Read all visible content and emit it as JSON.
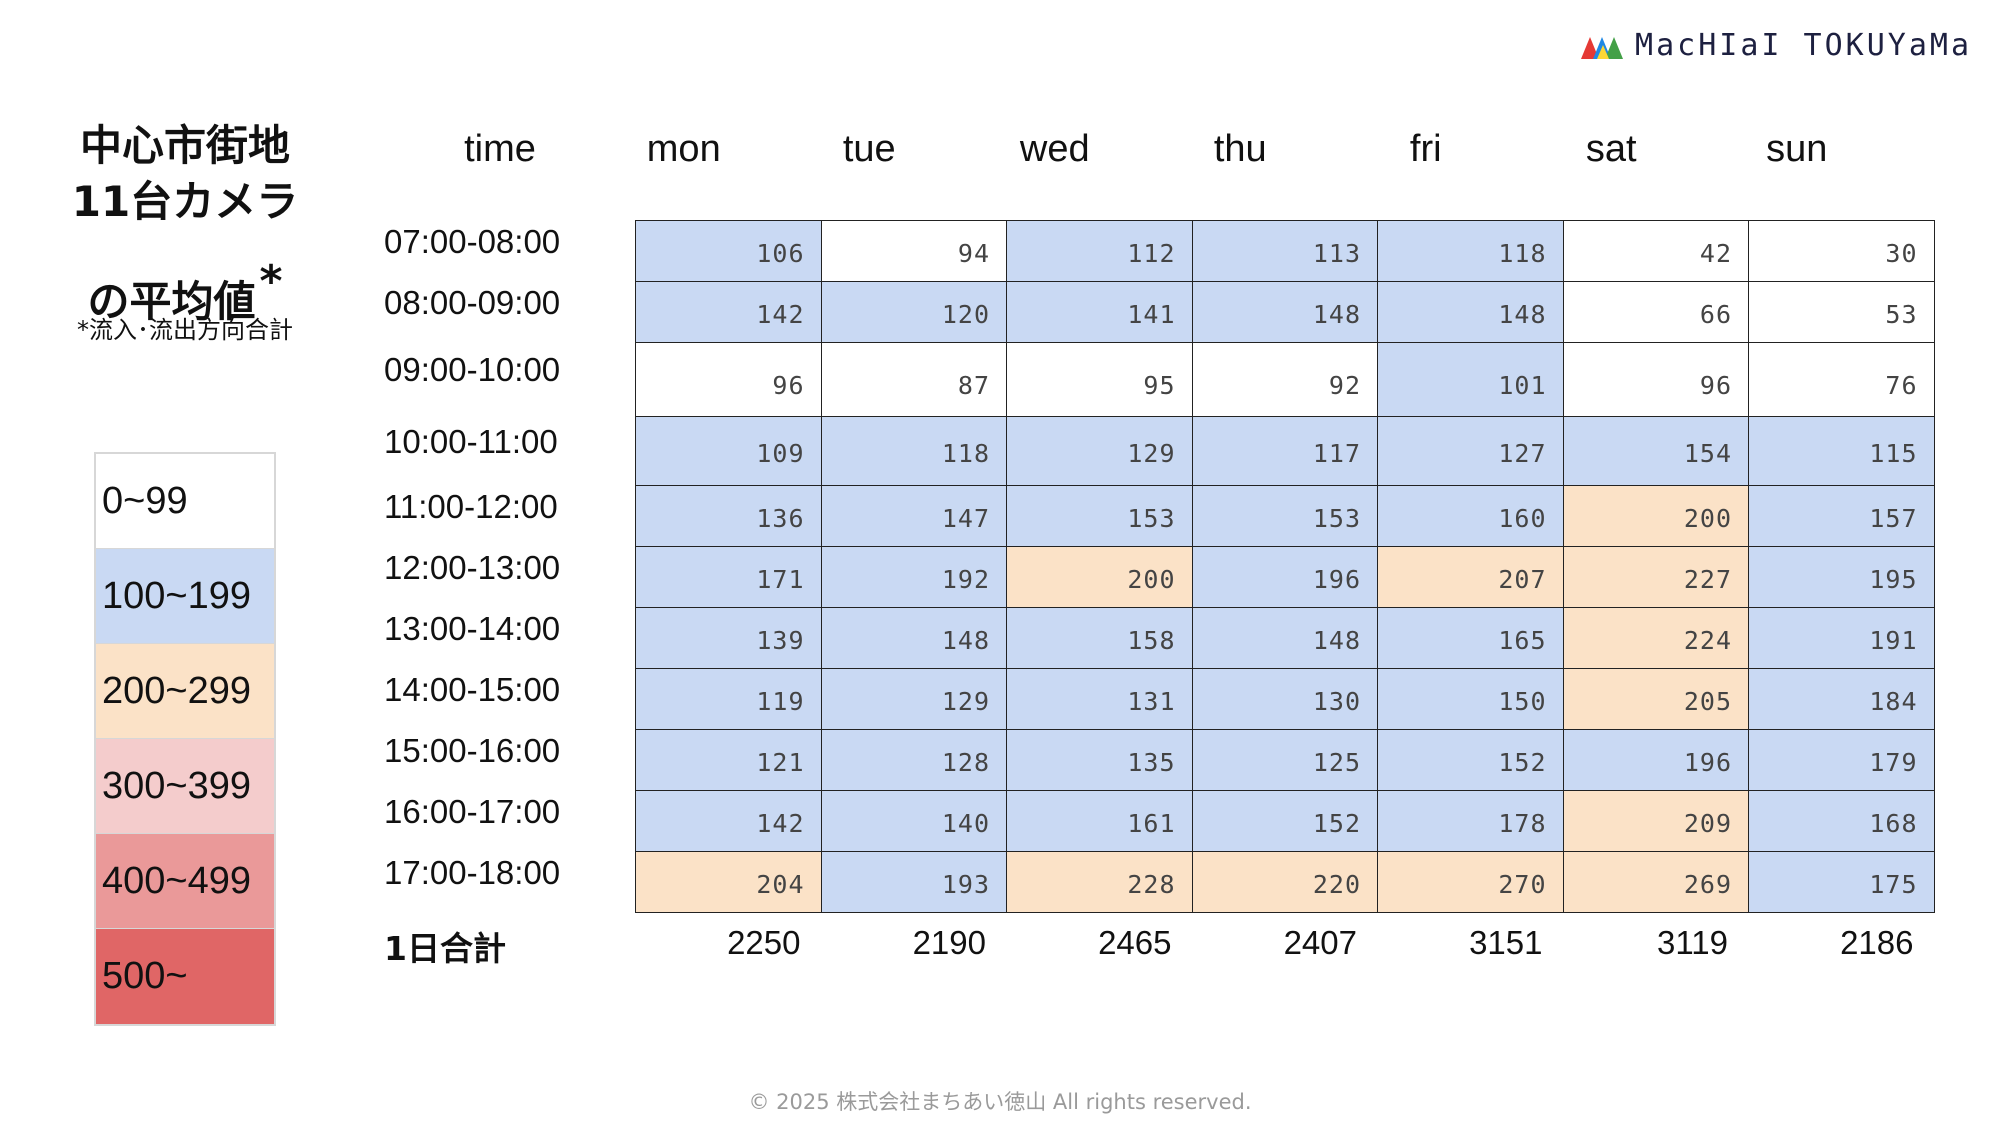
{
  "logo": {
    "text": "MacHIaI TOKUYaMa",
    "colors": [
      "#e53935",
      "#1e88e5",
      "#fdd835",
      "#43a047"
    ]
  },
  "title": {
    "line1": "中心市街地",
    "line2": "11台カメラ",
    "line3": "の平均値",
    "asterisk": "*"
  },
  "note": "*流入･流出方向合計",
  "legend": [
    {
      "label": "0~99",
      "color": "#ffffff"
    },
    {
      "label": "100~199",
      "color": "#c9d9f3"
    },
    {
      "label": "200~299",
      "color": "#fbe2c7"
    },
    {
      "label": "300~399",
      "color": "#f4cccc"
    },
    {
      "label": "400~499",
      "color": "#ea9999"
    },
    {
      "label": "500~",
      "color": "#e06666"
    }
  ],
  "chart_data": {
    "type": "table",
    "row_header": "time",
    "columns": [
      "mon",
      "tue",
      "wed",
      "thu",
      "fri",
      "sat",
      "sun"
    ],
    "rows": [
      {
        "label": "07:00-08:00",
        "values": [
          106,
          94,
          112,
          113,
          118,
          42,
          30
        ]
      },
      {
        "label": "08:00-09:00",
        "values": [
          142,
          120,
          141,
          148,
          148,
          66,
          53
        ]
      },
      {
        "label": "09:00-10:00",
        "values": [
          96,
          87,
          95,
          92,
          101,
          96,
          76
        ]
      },
      {
        "label": "10:00-11:00",
        "values": [
          109,
          118,
          129,
          117,
          127,
          154,
          115
        ]
      },
      {
        "label": "11:00-12:00",
        "values": [
          136,
          147,
          153,
          153,
          160,
          200,
          157
        ]
      },
      {
        "label": "12:00-13:00",
        "values": [
          171,
          192,
          200,
          196,
          207,
          227,
          195
        ]
      },
      {
        "label": "13:00-14:00",
        "values": [
          139,
          148,
          158,
          148,
          165,
          224,
          191
        ]
      },
      {
        "label": "14:00-15:00",
        "values": [
          119,
          129,
          131,
          130,
          150,
          205,
          184
        ]
      },
      {
        "label": "15:00-16:00",
        "values": [
          121,
          128,
          135,
          125,
          152,
          196,
          179
        ]
      },
      {
        "label": "16:00-17:00",
        "values": [
          142,
          140,
          161,
          152,
          178,
          209,
          168
        ]
      },
      {
        "label": "17:00-18:00",
        "values": [
          204,
          193,
          228,
          220,
          270,
          269,
          175
        ]
      }
    ],
    "total_label": "1日合計",
    "totals": [
      2250,
      2190,
      2465,
      2407,
      3151,
      3119,
      2186
    ]
  },
  "footer": "© 2025 株式会社まちあい徳山  All rights reserved."
}
